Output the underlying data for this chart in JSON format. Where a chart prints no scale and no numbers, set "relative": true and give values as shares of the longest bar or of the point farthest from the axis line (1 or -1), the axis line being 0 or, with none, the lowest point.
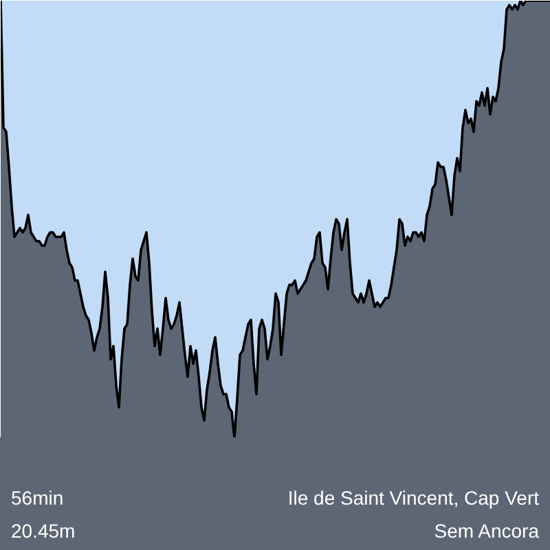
{
  "chart_data": {
    "type": "area",
    "relative": true,
    "grid": false,
    "categories": [
      null,
      null,
      null,
      null,
      null,
      null,
      null,
      null,
      null,
      null,
      null,
      null,
      null,
      null,
      null,
      null,
      null,
      null,
      null,
      null,
      null,
      null,
      null,
      null,
      null,
      null,
      null,
      null,
      null,
      null,
      null,
      null,
      null,
      null,
      null,
      null,
      null,
      null,
      null,
      null,
      null,
      null,
      null,
      null,
      null,
      null,
      null,
      null,
      null,
      null,
      null,
      null,
      null,
      null,
      null,
      null,
      null,
      null,
      null,
      null,
      null,
      null,
      null,
      null,
      null,
      null,
      null,
      null,
      null,
      null,
      null,
      null,
      null,
      null,
      null,
      null,
      null,
      null,
      null,
      null,
      null,
      null,
      null,
      null,
      null,
      null,
      null,
      null,
      null,
      null,
      null,
      null,
      null,
      null,
      null,
      null,
      null,
      null,
      null,
      null,
      null,
      null,
      null,
      null,
      null,
      null,
      null,
      null,
      null,
      null,
      null,
      null,
      null,
      null,
      null,
      null,
      null,
      null,
      null,
      null,
      null,
      null,
      null,
      null,
      null,
      null,
      null,
      null,
      null,
      null,
      null,
      null,
      null,
      null,
      null,
      null,
      null,
      null,
      null,
      null,
      null,
      null,
      null,
      null,
      null,
      null,
      null,
      null,
      null,
      null,
      null,
      null,
      null,
      null,
      null,
      null,
      null,
      null,
      null,
      null,
      null,
      null,
      null,
      null,
      null,
      null,
      null,
      null,
      null,
      null,
      null,
      null,
      null,
      null,
      null,
      null,
      null,
      null,
      null,
      null,
      null,
      null,
      null,
      null,
      null,
      null,
      null,
      null,
      null,
      null,
      null,
      null,
      null,
      null,
      null,
      null,
      null,
      null,
      null,
      null,
      null
    ],
    "series": [
      {
        "color": "#000000",
        "values": [
          1.0,
          0.71,
          0.7,
          0.62,
          0.53,
          0.46,
          0.47,
          0.48,
          0.47,
          0.48,
          0.51,
          0.47,
          0.46,
          0.45,
          0.45,
          0.44,
          0.44,
          0.46,
          0.47,
          0.47,
          0.46,
          0.46,
          0.46,
          0.47,
          0.43,
          0.4,
          0.39,
          0.36,
          0.36,
          0.33,
          0.3,
          0.28,
          0.27,
          0.24,
          0.2,
          0.23,
          0.25,
          0.3,
          0.38,
          0.32,
          0.18,
          0.21,
          0.12,
          0.07,
          0.18,
          0.25,
          0.26,
          0.35,
          0.41,
          0.37,
          0.36,
          0.43,
          0.45,
          0.47,
          0.4,
          0.29,
          0.21,
          0.25,
          0.19,
          0.25,
          0.32,
          0.27,
          0.25,
          0.26,
          0.28,
          0.31,
          0.25,
          0.19,
          0.14,
          0.21,
          0.17,
          0.2,
          0.14,
          0.07,
          0.04,
          0.11,
          0.15,
          0.2,
          0.23,
          0.17,
          0.12,
          0.1,
          0.1,
          0.07,
          0.06,
          0.0,
          0.09,
          0.19,
          0.2,
          0.23,
          0.26,
          0.27,
          0.17,
          0.1,
          0.25,
          0.27,
          0.25,
          0.18,
          0.21,
          0.25,
          0.33,
          0.31,
          0.19,
          0.26,
          0.33,
          0.35,
          0.35,
          0.36,
          0.33,
          0.34,
          0.35,
          0.36,
          0.38,
          0.4,
          0.41,
          0.46,
          0.47,
          0.4,
          0.39,
          0.34,
          0.41,
          0.47,
          0.5,
          0.49,
          0.43,
          0.47,
          0.5,
          0.4,
          0.33,
          0.32,
          0.31,
          0.33,
          0.31,
          0.33,
          0.36,
          0.33,
          0.3,
          0.31,
          0.3,
          0.31,
          0.32,
          0.32,
          0.35,
          0.39,
          0.43,
          0.5,
          0.49,
          0.44,
          0.46,
          0.45,
          0.47,
          0.47,
          0.46,
          0.47,
          0.45,
          0.51,
          0.53,
          0.57,
          0.58,
          0.63,
          0.62,
          0.62,
          0.59,
          0.55,
          0.51,
          0.6,
          0.64,
          0.61,
          0.71,
          0.75,
          0.72,
          0.73,
          0.7,
          0.77,
          0.76,
          0.79,
          0.76,
          0.8,
          0.74,
          0.78,
          0.77,
          0.8,
          0.86,
          0.89,
          0.98,
          0.99,
          0.98,
          0.99,
          0.98,
          1.0,
          0.99,
          1.0,
          1.0,
          1.0,
          1.0,
          1.0,
          1.0,
          1.0,
          1.0,
          1.0,
          1.0
        ]
      }
    ],
    "annotations": [
      "56min",
      "20.45m",
      "Ile de Saint Vincent, Cap Vert",
      "Sem Ancora"
    ]
  }
}
